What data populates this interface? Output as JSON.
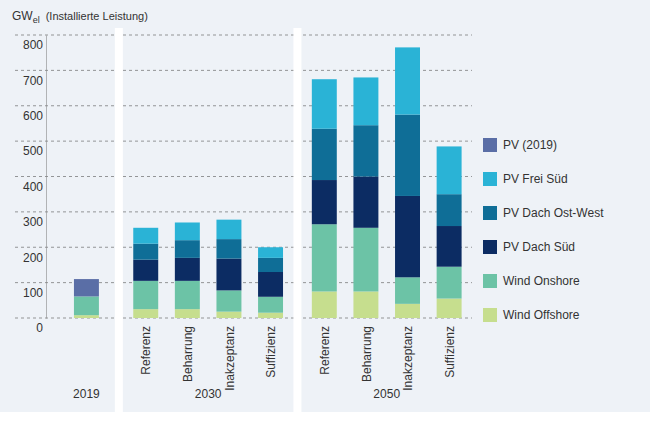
{
  "chart_data": {
    "type": "bar",
    "stacked": true,
    "y_label": "GW",
    "y_label_sub": "el",
    "y_label_note": "(Installierte Leistung)",
    "categories": [
      null,
      "Referenz",
      "Beharrung",
      "Inakzeptanz",
      "Suffizienz",
      "Referenz",
      "Beharrung",
      "Inakzeptanz",
      "Suffizienz"
    ],
    "groups": [
      "2019",
      "2030",
      "2030",
      "2030",
      "2030",
      "2050",
      "2050",
      "2050",
      "2050"
    ],
    "ylim": [
      0,
      800
    ],
    "yticks": [
      0,
      100,
      200,
      300,
      400,
      500,
      600,
      700,
      800
    ],
    "grid": true,
    "legend": "right",
    "series": [
      {
        "name": "PV (2019)",
        "color": "#5a6ea6",
        "values": [
          49,
          null,
          null,
          null,
          null,
          null,
          null,
          null,
          null
        ]
      },
      {
        "name": "PV Frei Süd",
        "color": "#2ab3d6",
        "values": [
          null,
          45,
          50,
          55,
          30,
          140,
          135,
          190,
          135
        ]
      },
      {
        "name": "PV Dach Ost-West",
        "color": "#0f6e97",
        "values": [
          null,
          45,
          50,
          55,
          40,
          145,
          145,
          230,
          90
        ]
      },
      {
        "name": "PV Dach Süd",
        "color": "#0c2c63",
        "values": [
          null,
          60,
          65,
          90,
          70,
          125,
          145,
          230,
          115
        ]
      },
      {
        "name": "Wind Onshore",
        "color": "#6cc3a6",
        "values": [
          53,
          80,
          80,
          60,
          45,
          190,
          180,
          75,
          90
        ]
      },
      {
        "name": "Wind Offshore",
        "color": "#c6de8e",
        "values": [
          8,
          25,
          25,
          18,
          15,
          75,
          75,
          40,
          55
        ]
      }
    ]
  }
}
